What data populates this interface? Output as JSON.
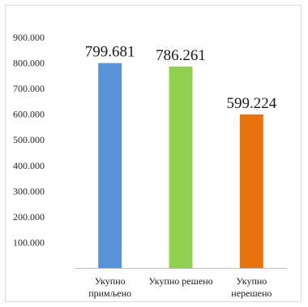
{
  "chart_data": {
    "type": "bar",
    "categories": [
      [
        "Укупно",
        "примљено"
      ],
      [
        "Укупно решено"
      ],
      [
        "Укупно",
        "нерешено"
      ]
    ],
    "values": [
      799681,
      786261,
      599224
    ],
    "data_labels": [
      "799.681",
      "786.261",
      "599.224"
    ],
    "colors": [
      "#5b93d9",
      "#92d050",
      "#e8720c"
    ],
    "ylim": [
      0,
      900000
    ],
    "yticks": [
      {
        "value": 100000,
        "label": "100.000"
      },
      {
        "value": 200000,
        "label": "200.000"
      },
      {
        "value": 300000,
        "label": "300.000"
      },
      {
        "value": 400000,
        "label": "400.000"
      },
      {
        "value": 500000,
        "label": "500.000"
      },
      {
        "value": 600000,
        "label": "600.000"
      },
      {
        "value": 700000,
        "label": "700.000"
      },
      {
        "value": 800000,
        "label": "800.000"
      },
      {
        "value": 900000,
        "label": "900.000"
      }
    ],
    "grid": false,
    "legend": "none",
    "title": "",
    "xlabel": "",
    "ylabel": ""
  }
}
